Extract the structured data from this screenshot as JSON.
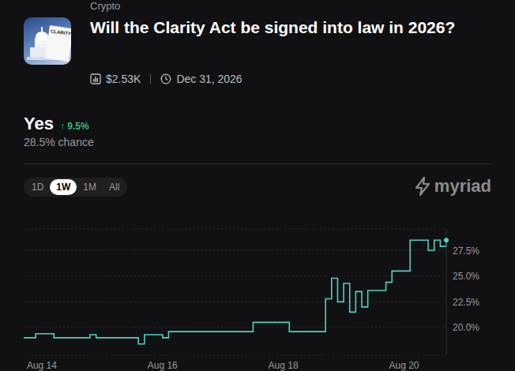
{
  "header": {
    "category": "Crypto",
    "icon_label": "CLARITY",
    "title": "Will the Clarity Act be signed into law in 2026?",
    "volume": "$2.53K",
    "end_date": "Dec 31, 2026"
  },
  "outcome": {
    "name": "Yes",
    "change": "↑ 9.5%",
    "chance": "28.5% chance"
  },
  "tabs": {
    "items": [
      "1D",
      "1W",
      "1M",
      "All"
    ],
    "active": "1W"
  },
  "brand": "myriad",
  "chart_data": {
    "type": "line",
    "line_style": "step",
    "color": "#4fd1c5",
    "grid": true,
    "categories": [
      null,
      null,
      null,
      "Aug 14",
      null,
      null,
      null,
      null,
      null,
      null,
      null,
      null,
      null,
      null,
      null,
      null,
      null,
      null,
      null,
      null,
      null,
      null,
      null,
      "Aug 16",
      null,
      null,
      null,
      null,
      null,
      null,
      null,
      null,
      null,
      null,
      null,
      null,
      null,
      null,
      null,
      null,
      null,
      null,
      null,
      "Aug 18",
      null,
      null,
      null,
      null,
      null,
      null,
      null,
      null,
      null,
      null,
      null,
      null,
      null,
      null,
      null,
      null,
      null,
      null,
      null,
      "Aug 20",
      null,
      null,
      null,
      null,
      null,
      null,
      null
    ],
    "values": [
      19.0,
      19.0,
      19.4,
      19.4,
      19.4,
      19.0,
      19.0,
      19.0,
      19.0,
      19.0,
      19.0,
      19.3,
      19.0,
      19.0,
      19.0,
      19.0,
      19.0,
      19.0,
      19.0,
      18.4,
      19.3,
      19.3,
      19.3,
      19.0,
      19.6,
      19.6,
      19.6,
      19.6,
      19.6,
      19.6,
      19.6,
      19.6,
      19.6,
      19.6,
      19.6,
      19.6,
      19.6,
      19.6,
      20.5,
      20.5,
      20.5,
      20.5,
      20.5,
      20.5,
      19.6,
      19.6,
      19.6,
      19.6,
      19.6,
      19.6,
      22.8,
      24.8,
      22.5,
      24.3,
      21.5,
      23.5,
      22.0,
      23.6,
      23.6,
      23.6,
      24.4,
      25.5,
      25.5,
      25.5,
      28.5,
      28.5,
      28.5,
      27.5,
      28.5,
      27.9,
      28.5
    ],
    "ylim": [
      17.3,
      29.6
    ],
    "yticks": [
      {
        "value": 20,
        "label": "20.0%"
      },
      {
        "value": 22.5,
        "label": "22.5%"
      },
      {
        "value": 25,
        "label": "25.0%"
      },
      {
        "value": 27.5,
        "label": "27.5%"
      }
    ]
  }
}
